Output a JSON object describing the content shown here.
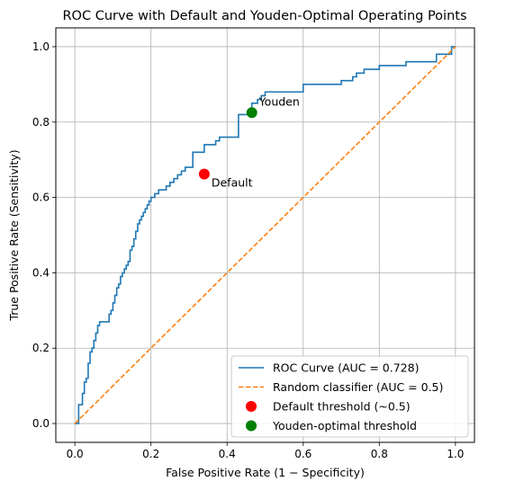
{
  "chart_data": {
    "type": "line",
    "title": "ROC Curve with Default and Youden-Optimal Operating Points",
    "xlabel": "False Positive Rate (1 − Specificity)",
    "ylabel": "True Positive Rate (Sensitivity)",
    "xlim": [
      -0.05,
      1.05
    ],
    "ylim": [
      -0.05,
      1.05
    ],
    "xticks": [
      "0.0",
      "0.2",
      "0.4",
      "0.6",
      "0.8",
      "1.0"
    ],
    "yticks": [
      "0.0",
      "0.2",
      "0.4",
      "0.6",
      "0.8",
      "1.0"
    ],
    "grid": true,
    "legend_position": "lower-right",
    "series": [
      {
        "name": "ROC Curve (AUC = 0.728)",
        "style": "step",
        "color": "#1f77b4",
        "x": [
          0.0,
          0.01,
          0.01,
          0.02,
          0.02,
          0.025,
          0.03,
          0.035,
          0.04,
          0.045,
          0.05,
          0.055,
          0.06,
          0.065,
          0.07,
          0.09,
          0.095,
          0.1,
          0.105,
          0.11,
          0.115,
          0.12,
          0.125,
          0.13,
          0.135,
          0.14,
          0.145,
          0.15,
          0.155,
          0.16,
          0.165,
          0.17,
          0.175,
          0.18,
          0.185,
          0.19,
          0.195,
          0.2,
          0.21,
          0.22,
          0.24,
          0.245,
          0.25,
          0.26,
          0.27,
          0.28,
          0.29,
          0.31,
          0.33,
          0.34,
          0.36,
          0.37,
          0.375,
          0.38,
          0.39,
          0.43,
          0.43,
          0.44,
          0.465,
          0.465,
          0.48,
          0.49,
          0.5,
          0.52,
          0.56,
          0.6,
          0.6,
          0.64,
          0.7,
          0.73,
          0.74,
          0.76,
          0.8,
          0.86,
          0.87,
          0.95,
          0.99,
          0.99,
          1.0
        ],
        "y": [
          0.0,
          0.02,
          0.05,
          0.06,
          0.08,
          0.11,
          0.12,
          0.16,
          0.19,
          0.2,
          0.22,
          0.24,
          0.26,
          0.27,
          0.27,
          0.29,
          0.3,
          0.32,
          0.34,
          0.36,
          0.37,
          0.39,
          0.4,
          0.41,
          0.42,
          0.43,
          0.46,
          0.47,
          0.49,
          0.51,
          0.53,
          0.54,
          0.55,
          0.56,
          0.57,
          0.58,
          0.59,
          0.6,
          0.61,
          0.62,
          0.63,
          0.63,
          0.64,
          0.65,
          0.66,
          0.67,
          0.68,
          0.72,
          0.72,
          0.74,
          0.74,
          0.75,
          0.75,
          0.76,
          0.76,
          0.76,
          0.82,
          0.82,
          0.84,
          0.85,
          0.86,
          0.87,
          0.88,
          0.88,
          0.88,
          0.89,
          0.9,
          0.9,
          0.91,
          0.92,
          0.93,
          0.94,
          0.95,
          0.95,
          0.96,
          0.98,
          0.99,
          1.0,
          1.0
        ]
      },
      {
        "name": "Random classifier (AUC = 0.5)",
        "style": "dashed",
        "color": "#ff7f0e",
        "x": [
          0.0,
          1.0
        ],
        "y": [
          0.0,
          1.0
        ]
      }
    ],
    "points": [
      {
        "name": "Default threshold (~0.5)",
        "label": "Default",
        "color": "#ff0000",
        "x": 0.34,
        "y": 0.662
      },
      {
        "name": "Youden-optimal threshold",
        "label": "Youden",
        "color": "#008000",
        "x": 0.465,
        "y": 0.825
      }
    ]
  }
}
